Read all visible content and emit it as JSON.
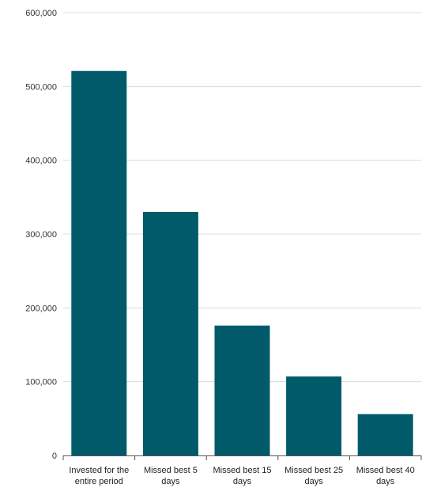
{
  "chart_data": {
    "type": "bar",
    "categories": [
      "Invested for the entire period",
      "Missed best 5 days",
      "Missed best 15 days",
      "Missed best 25 days",
      "Missed best 40 days"
    ],
    "category_lines": [
      [
        "Invested for the",
        "entire period"
      ],
      [
        "Missed best 5",
        "days"
      ],
      [
        "Missed best 15",
        "days"
      ],
      [
        "Missed best 25",
        "days"
      ],
      [
        "Missed best 40",
        "days"
      ]
    ],
    "values": [
      521000,
      330000,
      176000,
      107000,
      56000
    ],
    "ylim": [
      0,
      600000
    ],
    "yticks": [
      0,
      100000,
      200000,
      300000,
      400000,
      500000,
      600000
    ],
    "ytick_labels": [
      "0",
      "100,000",
      "200,000",
      "300,000",
      "400,000",
      "500,000",
      "600,000"
    ],
    "grid": true,
    "bar_color": "#005a6a",
    "grid_color": "#dcdcdc",
    "axis_color": "#555555"
  }
}
